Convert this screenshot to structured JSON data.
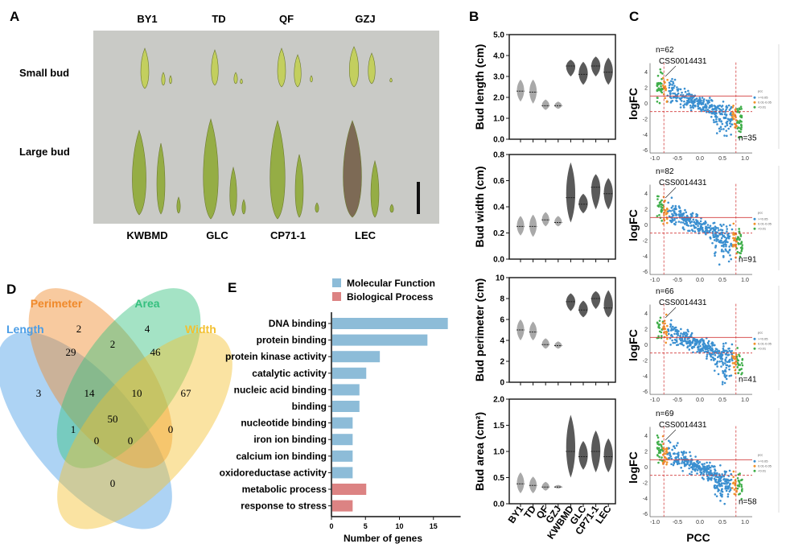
{
  "panel_labels": {
    "a": "A",
    "b": "B",
    "c": "C",
    "d": "D",
    "e": "E"
  },
  "panel_a": {
    "top_labels": [
      "BY1",
      "TD",
      "QF",
      "GZJ"
    ],
    "bottom_labels": [
      "KWBMD",
      "GLC",
      "CP71-1",
      "LEC"
    ],
    "row_labels": [
      "Small bud",
      "Large bud"
    ]
  },
  "chart_data": [
    {
      "type": "violin",
      "panel": "B",
      "categories": [
        "BY1",
        "TD",
        "QF",
        "GZJ",
        "KWBMD",
        "GLC",
        "CP71-1",
        "LEC"
      ],
      "colors": {
        "group1": "#a9a9a9",
        "group2": "#5a5a5a"
      },
      "plots": [
        {
          "ylabel": "Bud length (cm)",
          "ylim": [
            0,
            5
          ],
          "ticks": [
            "0.0",
            "1.0",
            "2.0",
            "3.0",
            "4.0",
            "5.0"
          ],
          "median": [
            2.3,
            2.25,
            1.6,
            1.6,
            3.5,
            3.1,
            3.5,
            3.2
          ],
          "min": [
            1.8,
            1.7,
            1.4,
            1.45,
            3.0,
            2.6,
            3.0,
            2.6
          ],
          "max": [
            2.85,
            2.85,
            1.9,
            1.8,
            3.8,
            3.7,
            3.95,
            3.9
          ]
        },
        {
          "ylabel": "Bud width (cm)",
          "ylim": [
            0,
            0.8
          ],
          "ticks": [
            "0.0",
            "0.2",
            "0.4",
            "0.6",
            "0.8"
          ],
          "median": [
            0.25,
            0.25,
            0.3,
            0.28,
            0.47,
            0.42,
            0.55,
            0.5
          ],
          "min": [
            0.18,
            0.17,
            0.25,
            0.25,
            0.28,
            0.35,
            0.38,
            0.38
          ],
          "max": [
            0.33,
            0.34,
            0.36,
            0.33,
            0.74,
            0.5,
            0.65,
            0.62
          ]
        },
        {
          "ylabel": "Bud perimeter (cm)",
          "ylim": [
            0,
            10
          ],
          "ticks": [
            "0",
            "2",
            "4",
            "6",
            "8",
            "10"
          ],
          "median": [
            5.0,
            4.8,
            3.6,
            3.5,
            7.7,
            6.9,
            8.0,
            7.1
          ],
          "min": [
            4.0,
            4.0,
            3.2,
            3.2,
            6.8,
            6.2,
            7.0,
            6.2
          ],
          "max": [
            6.0,
            5.8,
            4.2,
            3.9,
            8.5,
            7.8,
            8.7,
            8.8
          ]
        },
        {
          "ylabel": "Bud area (cm²)",
          "ylim": [
            0,
            2
          ],
          "ticks": [
            "0.0",
            "0.5",
            "1.0",
            "1.5",
            "2.0"
          ],
          "median": [
            0.38,
            0.35,
            0.32,
            0.32,
            1.0,
            0.9,
            1.0,
            0.9
          ],
          "min": [
            0.2,
            0.2,
            0.25,
            0.29,
            0.5,
            0.65,
            0.6,
            0.6
          ],
          "max": [
            0.6,
            0.52,
            0.42,
            0.36,
            1.7,
            1.2,
            1.4,
            1.25
          ]
        }
      ]
    },
    {
      "type": "scatter",
      "panel": "C",
      "xlabel": "PCC",
      "ylabel": "logFC",
      "xlim": [
        -1.0,
        1.0
      ],
      "ylim": [
        -6,
        5
      ],
      "xticks": [
        "-1.0",
        "-0.5",
        "0.0",
        "0.5",
        "1.0"
      ],
      "yticks": [
        "4",
        "2",
        "0",
        "-2",
        "-4",
        "-6"
      ],
      "thresholds": {
        "pcc": [
          -0.8,
          0.8
        ],
        "logfc": [
          1,
          -1
        ]
      },
      "legend": {
        "title": "pcc",
        "entries": [
          {
            "label": ">=0.05",
            "color": "#3a8fd0"
          },
          {
            "label": "0.01-0.05",
            "color": "#f0922b"
          },
          {
            "label": "<0.01",
            "color": "#3fae49"
          }
        ]
      },
      "annotation_gene": "CSS0014431",
      "panels": [
        {
          "n_left": "n=62",
          "n_right": "n=35"
        },
        {
          "n_left": "n=82",
          "n_right": "n=91"
        },
        {
          "n_left": "n=66",
          "n_right": "n=41"
        },
        {
          "n_left": "n=69",
          "n_right": "n=58"
        }
      ]
    },
    {
      "type": "venn",
      "panel": "D",
      "sets": [
        {
          "name": "Length",
          "color": "#4a9de6"
        },
        {
          "name": "Perimeter",
          "color": "#f0892a"
        },
        {
          "name": "Area",
          "color": "#35c07f"
        },
        {
          "name": "Width",
          "color": "#f3c030"
        }
      ],
      "regions": [
        {
          "sets": "Length only",
          "value": "3"
        },
        {
          "sets": "Perimeter only",
          "value": "2"
        },
        {
          "sets": "Area only",
          "value": "4"
        },
        {
          "sets": "Width only",
          "value": "67"
        },
        {
          "sets": "Length∩Perimeter",
          "value": "29"
        },
        {
          "sets": "Perimeter∩Area",
          "value": "2"
        },
        {
          "sets": "Area∩Width",
          "value": "46"
        },
        {
          "sets": "Length∩Perimeter∩Area",
          "value": "14"
        },
        {
          "sets": "Perimeter∩Area∩Width",
          "value": "10"
        },
        {
          "sets": "All four",
          "value": "50"
        },
        {
          "sets": "Length∩Area",
          "value": "1"
        },
        {
          "sets": "Length∩Area∩Width",
          "value": "0"
        },
        {
          "sets": "Length∩Perimeter∩Width",
          "value": "0"
        },
        {
          "sets": "Perimeter∩Width",
          "value": "0"
        },
        {
          "sets": "Length∩Width",
          "value": "0"
        }
      ]
    },
    {
      "type": "bar",
      "panel": "E",
      "orientation": "horizontal",
      "categories": [
        "DNA binding",
        "protein binding",
        "protein kinase activity",
        "catalytic activity",
        "nucleic acid binding",
        "binding",
        "nucleotide binding",
        "iron ion binding",
        "calcium ion binding",
        "oxidoreductase activity",
        "metabolic process",
        "response to stress"
      ],
      "values": [
        17,
        14,
        7,
        5,
        4,
        4,
        3,
        3,
        3,
        3,
        5,
        3
      ],
      "groups": [
        "Molecular Function",
        "Molecular Function",
        "Molecular Function",
        "Molecular Function",
        "Molecular Function",
        "Molecular Function",
        "Molecular Function",
        "Molecular Function",
        "Molecular Function",
        "Molecular Function",
        "Biological Process",
        "Biological Process"
      ],
      "legend": [
        {
          "name": "Molecular Function",
          "color": "#8dbcd8"
        },
        {
          "name": "Biological Process",
          "color": "#dc8383"
        }
      ],
      "xlabel": "Number of genes",
      "xlim": [
        0,
        19
      ],
      "xticks": [
        "0",
        "5",
        "10",
        "15"
      ]
    }
  ]
}
